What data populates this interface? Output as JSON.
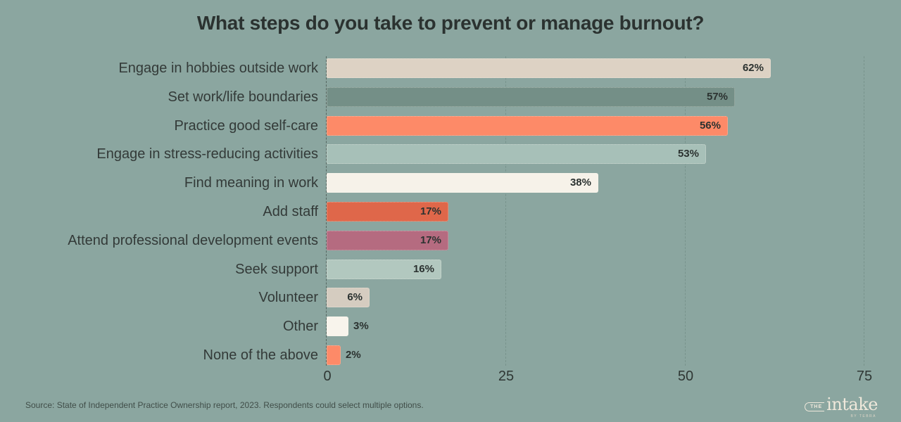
{
  "title": "What steps do you take to prevent or manage burnout?",
  "source_note": "Source: State of Independent Practice Ownership report, 2023. Respondents could select multiple options.",
  "logo": {
    "the": "THE",
    "name": "intake",
    "byline": "BY TEBRA"
  },
  "colors": {
    "background": "#8BA6A0",
    "title_text": "#2B3230",
    "category_text": "#333A38",
    "value_text": "#2B3230",
    "zero_axis": "#55655F",
    "gridline": "#78938C",
    "source_text": "#414E49",
    "logo_cream": "#EFE8DB"
  },
  "chart_data": {
    "type": "bar",
    "orientation": "horizontal",
    "title": "What steps do you take to prevent or manage burnout?",
    "categories": [
      "Engage in hobbies outside work",
      "Set work/life boundaries",
      "Practice good self-care",
      "Engage in stress-reducing activities",
      "Find meaning in work",
      "Add staff",
      "Attend professional development events",
      "Seek support",
      "Volunteer",
      "Other",
      "None of the above"
    ],
    "values": [
      62,
      57,
      56,
      53,
      38,
      17,
      17,
      16,
      6,
      3,
      2
    ],
    "value_labels": [
      "62%",
      "57%",
      "56%",
      "53%",
      "38%",
      "17%",
      "17%",
      "16%",
      "6%",
      "3%",
      "2%"
    ],
    "bar_colors": [
      "#DDD2C4",
      "#748F87",
      "#FD8A68",
      "#A7C0B8",
      "#F6F2E9",
      "#DF674A",
      "#B56B80",
      "#B2C8BF",
      "#D5CCC0",
      "#F8F4EC",
      "#FD8A68"
    ],
    "xlabel": "",
    "ylabel": "",
    "x_ticks": [
      0,
      25,
      50,
      75
    ],
    "x_tick_labels": [
      "0",
      "25",
      "50",
      "75"
    ],
    "xlim": [
      0,
      76.3
    ],
    "grid": "vertical-dashed",
    "legend": "none",
    "value_label_inside_min": 6
  }
}
